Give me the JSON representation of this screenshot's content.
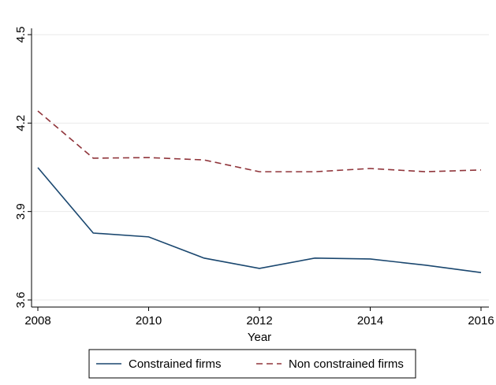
{
  "chart_data": {
    "type": "line",
    "x_label": "Year",
    "x": [
      2008,
      2009,
      2010,
      2011,
      2012,
      2013,
      2014,
      2015,
      2016
    ],
    "series": [
      {
        "name": "Constrained firms",
        "color": "#1a476f",
        "dash": "solid",
        "values": [
          4.049,
          3.827,
          3.814,
          3.742,
          3.707,
          3.742,
          3.739,
          3.718,
          3.693
        ]
      },
      {
        "name": "Non constrained firms",
        "color": "#90353b",
        "dash": "dashed",
        "values": [
          4.241,
          4.081,
          4.083,
          4.075,
          4.035,
          4.035,
          4.046,
          4.035,
          4.041
        ]
      }
    ],
    "xlim": [
      2008,
      2016
    ],
    "xticks": [
      2008,
      2010,
      2012,
      2014,
      2016
    ],
    "ylim": [
      3.6,
      4.5
    ],
    "yticks": [
      3.6,
      3.9,
      4.2,
      4.5
    ],
    "grid": true,
    "legend": "bottom"
  }
}
